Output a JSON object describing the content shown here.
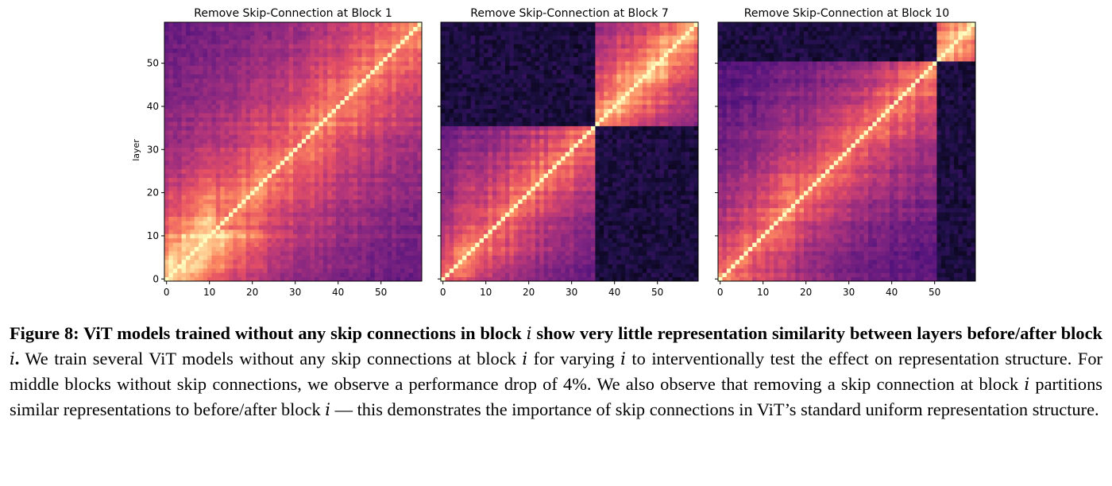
{
  "chart_data": [
    {
      "type": "heatmap",
      "title": "Remove Skip-Connection at Block 1",
      "xlabel": "",
      "ylabel": "layer",
      "n": 60,
      "xticks": [
        0,
        10,
        20,
        30,
        40,
        50
      ],
      "yticks": [
        0,
        10,
        20,
        30,
        40,
        50
      ],
      "xlim": [
        0,
        59
      ],
      "ylim": [
        0,
        59
      ],
      "colormap": "magma",
      "block_boundaries": [],
      "description_of_values": "representation similarity between layers (diagonal = 1.0)"
    },
    {
      "type": "heatmap",
      "title": "Remove Skip-Connection at Block 7",
      "xlabel": "",
      "ylabel": "",
      "n": 60,
      "xticks": [
        0,
        10,
        20,
        30,
        40,
        50
      ],
      "yticks": [
        0,
        10,
        20,
        30,
        40,
        50
      ],
      "xlim": [
        0,
        59
      ],
      "ylim": [
        0,
        59
      ],
      "colormap": "magma",
      "block_boundaries": [
        36
      ]
    },
    {
      "type": "heatmap",
      "title": "Remove Skip-Connection at Block 10",
      "xlabel": "",
      "ylabel": "",
      "n": 60,
      "xticks": [
        0,
        10,
        20,
        30,
        40,
        50
      ],
      "yticks": [
        0,
        10,
        20,
        30,
        40,
        50
      ],
      "xlim": [
        0,
        59
      ],
      "ylim": [
        0,
        59
      ],
      "colormap": "magma",
      "block_boundaries": [
        51
      ]
    }
  ],
  "caption": {
    "bold_prefix": "Figure 8: ViT models trained without any skip connections in block ",
    "bold_var": "i",
    "bold_middle": " show very little representation similarity between layers before/after block ",
    "bold_var2": "i",
    "bold_end": ".",
    "t1": " We train several ViT models without any skip connections at block ",
    "v1": "i",
    "t2": " for varying ",
    "v2": "i",
    "t3": " to interventionally test the effect on representation structure. For middle blocks without skip connections, we observe a performance drop of ",
    "v3": "4%",
    "t4": ". We also observe that removing a skip connection at block ",
    "v4": "i",
    "t5": " partitions similar representations to before/after block ",
    "v5": "i",
    "t6": " — this demonstrates the importance of skip connections in ViT’s standard uniform representation structure."
  }
}
